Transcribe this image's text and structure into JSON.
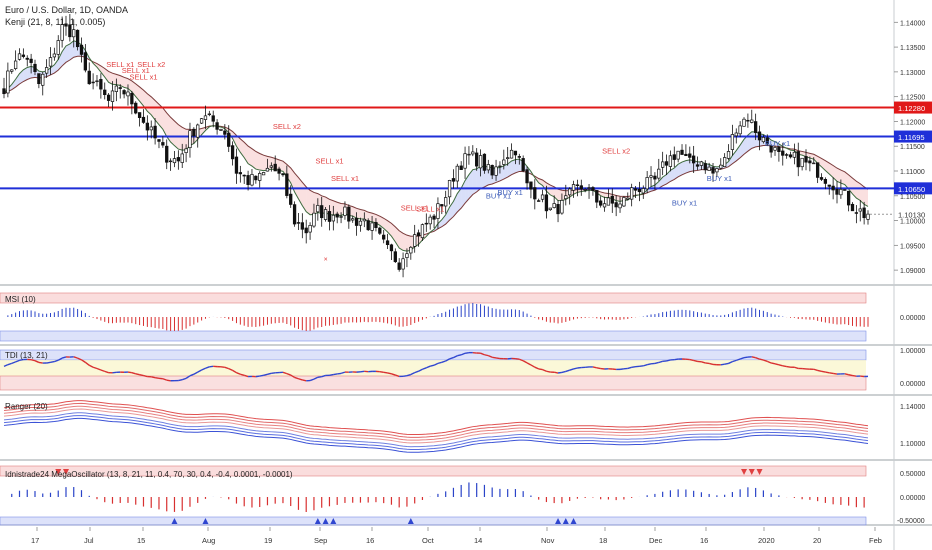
{
  "header": {
    "symbol_line": "Euro / U.S. Dollar, 1D, OANDA",
    "indicator_line": "Kenji (21, 8, 11, 1, 0.005)"
  },
  "colors": {
    "up": "#5b9bd5",
    "down": "#e05050",
    "support": "#1f2fd8",
    "resistance": "#e01818",
    "buy_text": "#3b5bb8",
    "sell_text": "#e04040",
    "tdi_line_up": "#2a44c8",
    "tdi_line_down": "#d83030"
  },
  "chart_data": [
    {
      "id": "price",
      "type": "candlestick",
      "title": "Euro / U.S. Dollar, 1D, OANDA",
      "y_axis_ticks": [
        "1.14000",
        "1.13500",
        "1.13000",
        "1.12500",
        "1.12000",
        "1.11500",
        "1.11000",
        "1.10500",
        "1.10000",
        "1.09500",
        "1.09000"
      ],
      "ylim": [
        1.087,
        1.1445
      ],
      "horizontal_levels": [
        {
          "label": "1.12280",
          "value": 1.1228,
          "color": "#e01818"
        },
        {
          "label": "1.11695",
          "value": 1.11695,
          "color": "#1f2fd8"
        },
        {
          "label": "1.10650",
          "value": 1.1065,
          "color": "#1f2fd8"
        }
      ],
      "last_price": {
        "label": "1.10130",
        "value": 1.1013
      },
      "x_labels": [
        "17",
        "Jul",
        "15",
        "Aug",
        "19",
        "Sep",
        "16",
        "Oct",
        "14",
        "Nov",
        "18",
        "Dec",
        "16",
        "2020",
        "20",
        "Feb"
      ],
      "anchors": [
        [
          0,
          1.127
        ],
        [
          3,
          1.133
        ],
        [
          6,
          1.133
        ],
        [
          9,
          1.1275
        ],
        [
          12,
          1.132
        ],
        [
          15,
          1.139
        ],
        [
          18,
          1.138
        ],
        [
          21,
          1.1295
        ],
        [
          24,
          1.127
        ],
        [
          27,
          1.124
        ],
        [
          30,
          1.127
        ],
        [
          33,
          1.124
        ],
        [
          36,
          1.12
        ],
        [
          39,
          1.1165
        ],
        [
          42,
          1.113
        ],
        [
          45,
          1.112
        ],
        [
          48,
          1.117
        ],
        [
          51,
          1.121
        ],
        [
          54,
          1.12
        ],
        [
          57,
          1.118
        ],
        [
          60,
          1.11
        ],
        [
          63,
          1.108
        ],
        [
          66,
          1.1085
        ],
        [
          69,
          1.111
        ],
        [
          72,
          1.108
        ],
        [
          75,
          1.1
        ],
        [
          78,
          1.098
        ],
        [
          81,
          1.102
        ],
        [
          84,
          1.101
        ],
        [
          87,
          1.102
        ],
        [
          90,
          1.1
        ],
        [
          93,
          1.1
        ],
        [
          96,
          1.0975
        ],
        [
          99,
          1.094
        ],
        [
          102,
          1.0915
        ],
        [
          105,
          1.096
        ],
        [
          108,
          1.0985
        ],
        [
          111,
          1.101
        ],
        [
          114,
          1.105
        ],
        [
          117,
          1.111
        ],
        [
          120,
          1.113
        ],
        [
          123,
          1.112
        ],
        [
          126,
          1.109
        ],
        [
          129,
          1.113
        ],
        [
          132,
          1.1145
        ],
        [
          135,
          1.107
        ],
        [
          138,
          1.105
        ],
        [
          141,
          1.102
        ],
        [
          144,
          1.103
        ],
        [
          147,
          1.106
        ],
        [
          150,
          1.107
        ],
        [
          153,
          1.104
        ],
        [
          156,
          1.1035
        ],
        [
          159,
          1.103
        ],
        [
          162,
          1.106
        ],
        [
          165,
          1.107
        ],
        [
          168,
          1.108
        ],
        [
          171,
          1.112
        ],
        [
          174,
          1.114
        ],
        [
          177,
          1.1115
        ],
        [
          180,
          1.112
        ],
        [
          183,
          1.1095
        ],
        [
          186,
          1.112
        ],
        [
          189,
          1.119
        ],
        [
          192,
          1.121
        ],
        [
          195,
          1.117
        ],
        [
          198,
          1.115
        ],
        [
          201,
          1.112
        ],
        [
          204,
          1.1125
        ],
        [
          207,
          1.1115
        ],
        [
          210,
          1.11
        ],
        [
          213,
          1.108
        ],
        [
          216,
          1.106
        ],
        [
          219,
          1.103
        ],
        [
          222,
          1.1013
        ]
      ],
      "signals": [
        {
          "text": "SELL x1",
          "i": 30,
          "price": 1.131,
          "kind": "sell"
        },
        {
          "text": "SELL x1",
          "i": 34,
          "price": 1.1298,
          "kind": "sell"
        },
        {
          "text": "SELL x2",
          "i": 38,
          "price": 1.131,
          "kind": "sell"
        },
        {
          "text": "SELL x1",
          "i": 36,
          "price": 1.1285,
          "kind": "sell"
        },
        {
          "text": "SELL x2",
          "i": 73,
          "price": 1.1185,
          "kind": "sell"
        },
        {
          "text": "SELL x1",
          "i": 84,
          "price": 1.1115,
          "kind": "sell"
        },
        {
          "text": "SELL x1",
          "i": 88,
          "price": 1.108,
          "kind": "sell"
        },
        {
          "text": "SELL x1",
          "i": 106,
          "price": 1.102,
          "kind": "sell"
        },
        {
          "text": "SELL x1",
          "i": 110,
          "price": 1.1018,
          "kind": "sell"
        },
        {
          "text": "SELL x2",
          "i": 158,
          "price": 1.1135,
          "kind": "sell"
        },
        {
          "text": "BUY x1",
          "i": 128,
          "price": 1.1045,
          "kind": "buy"
        },
        {
          "text": "BUY x1",
          "i": 131,
          "price": 1.1052,
          "kind": "buy"
        },
        {
          "text": "BUY x1",
          "i": 176,
          "price": 1.103,
          "kind": "buy"
        },
        {
          "text": "BUY x1",
          "i": 185,
          "price": 1.108,
          "kind": "buy"
        },
        {
          "text": "BUY x1",
          "i": 200,
          "price": 1.115,
          "kind": "buy"
        }
      ]
    },
    {
      "id": "msi",
      "type": "histogram",
      "title": "MSI (10)",
      "y_axis_ticks": [
        "0.00000"
      ]
    },
    {
      "id": "tdi",
      "type": "line",
      "title": "TDI (13, 21)",
      "y_axis_ticks": [
        "1.00000",
        "0.00000"
      ]
    },
    {
      "id": "ranger",
      "type": "line",
      "title": "Ranger (20)",
      "y_axis_ticks": [
        "1.14000",
        "1.10000"
      ]
    },
    {
      "id": "osc",
      "type": "histogram",
      "title": "Idnistrade24 MegaOscillator (13, 8, 21, 11, 0.4, 70, 30, 0.4, -0.4, 0.0001, -0.0001)",
      "y_axis_ticks": [
        "0.50000",
        "0.00000",
        "-0.50000"
      ]
    }
  ]
}
